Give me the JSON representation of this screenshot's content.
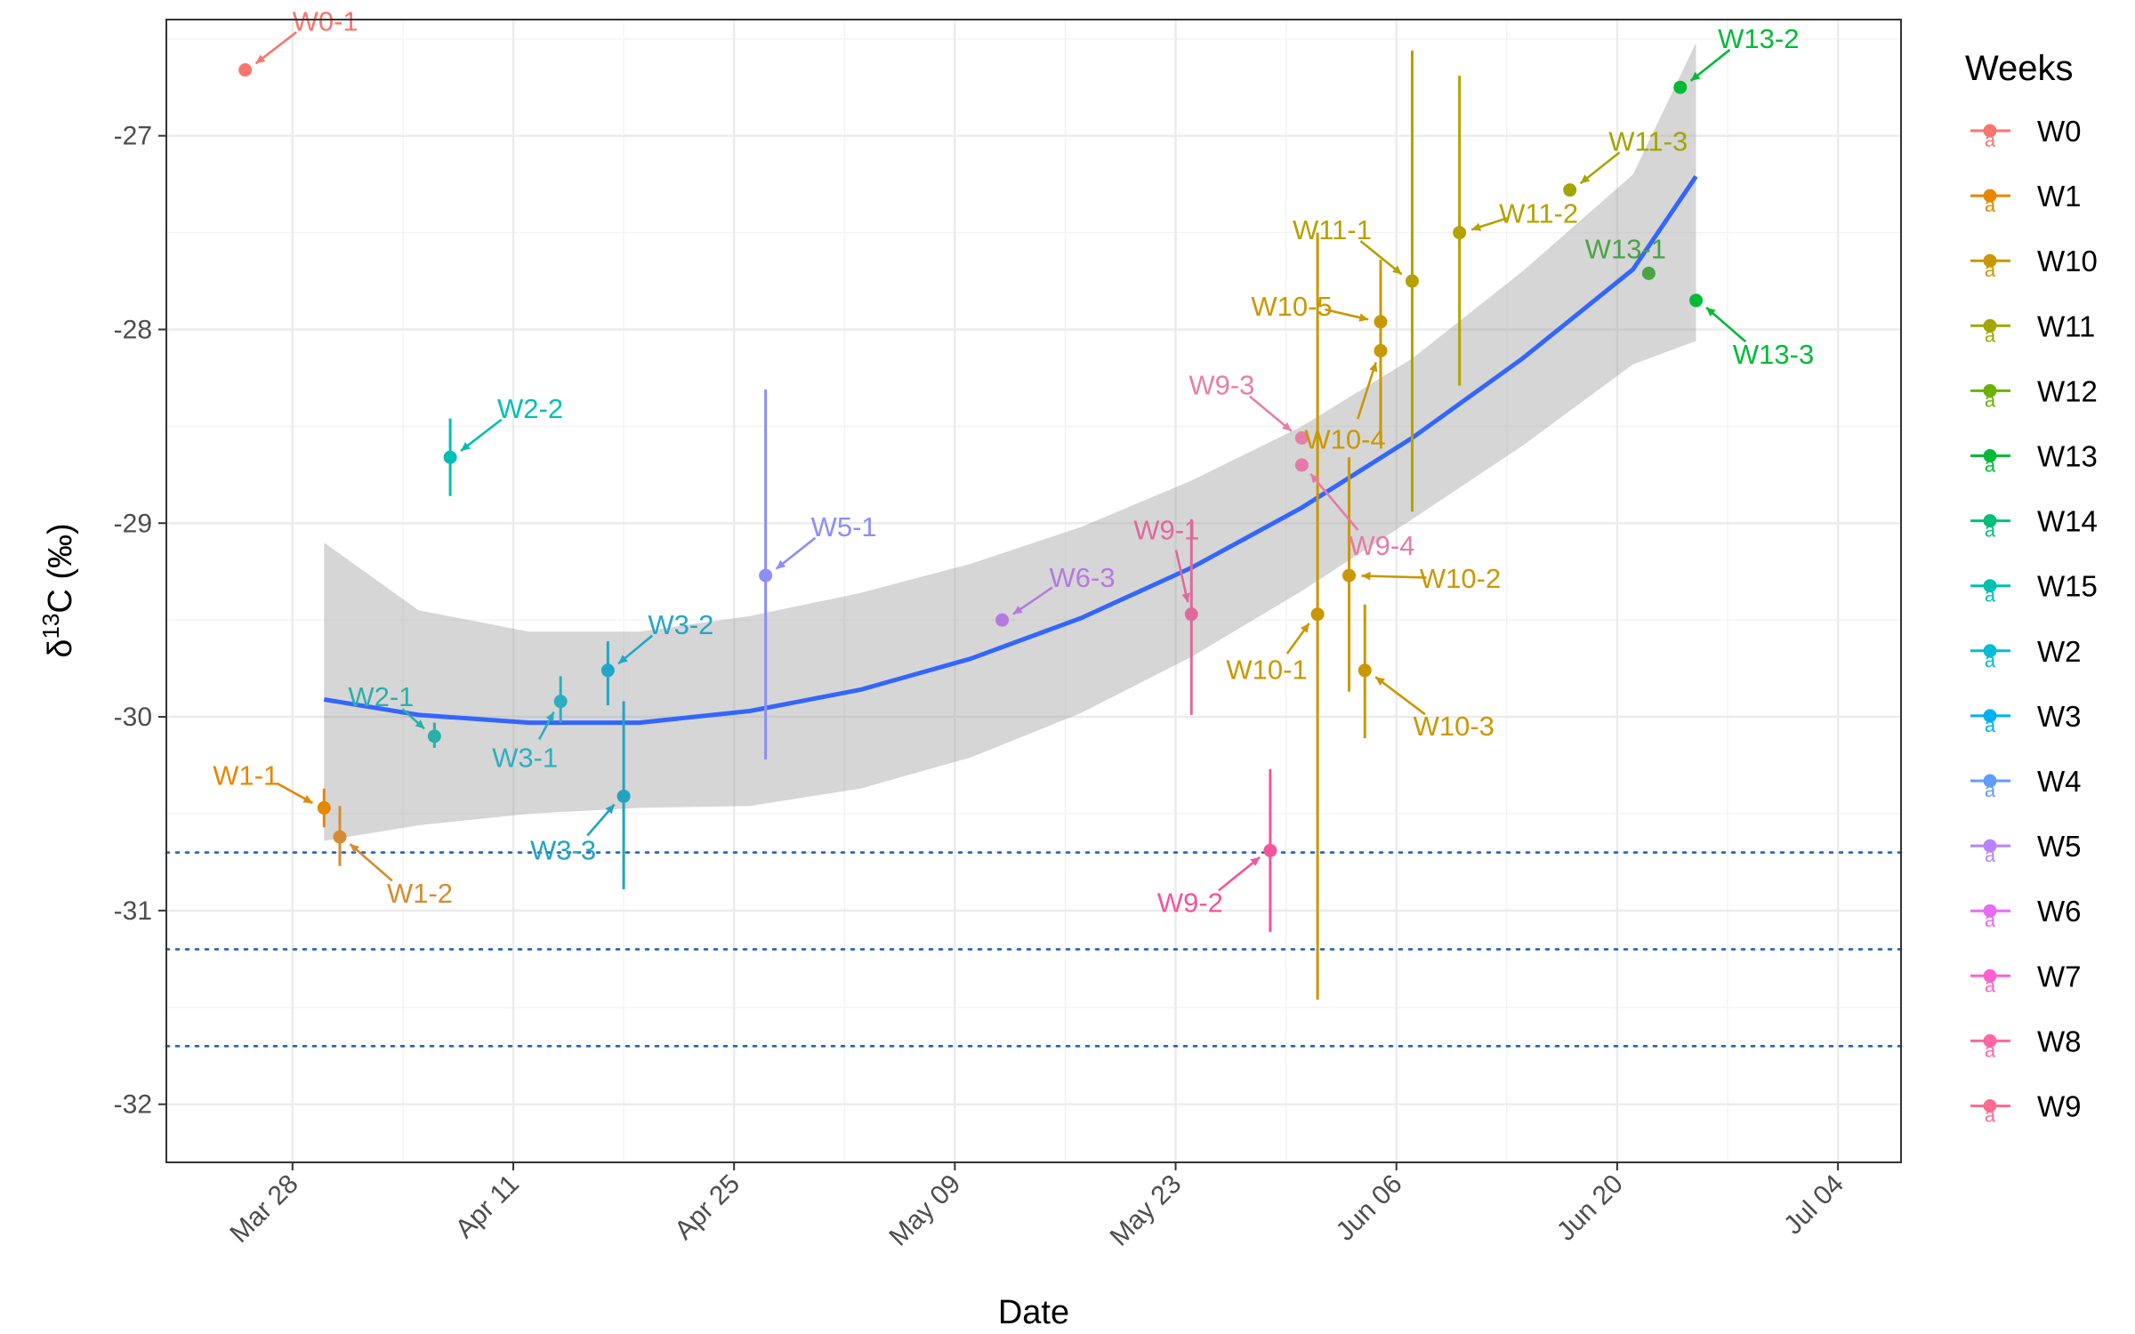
{
  "chart_data": {
    "type": "scatter",
    "title": "",
    "xlabel": "Date",
    "ylabel": "δ13C (‰)",
    "ylabel_parts": {
      "prefix": "δ",
      "sup": "13",
      "suffix": "C (‰)"
    },
    "x_is_date": true,
    "xlim": [
      "2018-03-20",
      "2018-07-08"
    ],
    "ylim": [
      -32.3,
      -26.4
    ],
    "x_ticks": [
      "2018-03-28",
      "2018-04-11",
      "2018-04-25",
      "2018-05-09",
      "2018-05-23",
      "2018-06-06",
      "2018-06-20",
      "2018-07-04"
    ],
    "x_tick_labels": [
      "Mar 28",
      "Apr 11",
      "Apr 25",
      "May 09",
      "May 23",
      "Jun 06",
      "Jun 20",
      "Jul 04"
    ],
    "y_ticks": [
      -32,
      -31,
      -30,
      -29,
      -28,
      -27
    ],
    "y_tick_labels": [
      "-32",
      "-31",
      "-30",
      "-29",
      "-28",
      "-27"
    ],
    "grid": true,
    "legend": {
      "title": "Weeks",
      "position": "right",
      "key_glyph": "a",
      "entries": [
        {
          "name": "W0",
          "color": "#F8766D"
        },
        {
          "name": "W1",
          "color": "#E58700"
        },
        {
          "name": "W10",
          "color": "#C99800"
        },
        {
          "name": "W11",
          "color": "#A3A500"
        },
        {
          "name": "W12",
          "color": "#6BB100"
        },
        {
          "name": "W13",
          "color": "#00BA38"
        },
        {
          "name": "W14",
          "color": "#00BF7D"
        },
        {
          "name": "W15",
          "color": "#00C0AF"
        },
        {
          "name": "W2",
          "color": "#00BCD8"
        },
        {
          "name": "W3",
          "color": "#00B0F6"
        },
        {
          "name": "W4",
          "color": "#619CFF"
        },
        {
          "name": "W5",
          "color": "#B983FF"
        },
        {
          "name": "W6",
          "color": "#E76BF3"
        },
        {
          "name": "W7",
          "color": "#FD61D1"
        },
        {
          "name": "W8",
          "color": "#FF67A4"
        },
        {
          "name": "W9",
          "color": "#FF6C91"
        }
      ]
    },
    "reference_lines": [
      -30.7,
      -31.2,
      -31.7
    ],
    "points": [
      {
        "date": "2018-03-25",
        "y": -26.66,
        "week": "W0",
        "label": "W0-1",
        "color": "#F8766D"
      },
      {
        "date": "2018-03-30",
        "y": -30.47,
        "ymin": -30.57,
        "ymax": -30.37,
        "week": "W1",
        "label": "W1-1",
        "color": "#E58700"
      },
      {
        "date": "2018-03-31",
        "y": -30.62,
        "ymin": -30.77,
        "ymax": -30.46,
        "week": "W1",
        "label": "W1-2",
        "color": "#D38D30"
      },
      {
        "date": "2018-04-06",
        "y": -30.1,
        "ymin": -30.16,
        "ymax": -30.03,
        "week": "W2",
        "label": "W2-1",
        "color": "#29B0A8"
      },
      {
        "date": "2018-04-07",
        "y": -28.66,
        "ymin": -28.86,
        "ymax": -28.46,
        "week": "W2",
        "label": "W2-2",
        "color": "#00BEB8"
      },
      {
        "date": "2018-04-14",
        "y": -29.92,
        "ymin": -30.03,
        "ymax": -29.79,
        "week": "W3",
        "label": "W3-1",
        "color": "#2BAFC0"
      },
      {
        "date": "2018-04-17",
        "y": -29.76,
        "ymin": -29.94,
        "ymax": -29.61,
        "week": "W3",
        "label": "W3-2",
        "color": "#1FA7C7"
      },
      {
        "date": "2018-04-18",
        "y": -30.41,
        "ymin": -30.89,
        "ymax": -29.92,
        "week": "W3",
        "label": "W3-3",
        "color": "#23A3C0"
      },
      {
        "date": "2018-04-27",
        "y": -29.27,
        "ymin": -30.22,
        "ymax": -28.31,
        "week": "W5",
        "label": "W5-1",
        "color": "#8B8FF7"
      },
      {
        "date": "2018-05-12",
        "y": -29.5,
        "week": "W6",
        "label": "W6-3",
        "color": "#B57AE0"
      },
      {
        "date": "2018-05-24",
        "y": -29.47,
        "ymin": -29.99,
        "ymax": -28.98,
        "week": "W9",
        "label": "W9-1",
        "color": "#E0699B"
      },
      {
        "date": "2018-05-29",
        "y": -30.69,
        "ymin": -31.11,
        "ymax": -30.27,
        "week": "W9",
        "label": "W9-2",
        "color": "#F2559C"
      },
      {
        "date": "2018-05-31",
        "y": -28.56,
        "week": "W9",
        "label": "W9-3",
        "color": "#E77FA6"
      },
      {
        "date": "2018-05-31",
        "y": -28.7,
        "week": "W9",
        "label": "W9-4",
        "color": "#E57BA8"
      },
      {
        "date": "2018-06-01",
        "y": -29.47,
        "ymin": -31.46,
        "ymax": -27.5,
        "week": "W10",
        "label": "W10-1",
        "color": "#C99800"
      },
      {
        "date": "2018-06-03",
        "y": -29.27,
        "ymin": -29.87,
        "ymax": -28.66,
        "week": "W10",
        "label": "W10-2",
        "color": "#C99800"
      },
      {
        "date": "2018-06-04",
        "y": -29.76,
        "ymin": -30.11,
        "ymax": -29.42,
        "week": "W10",
        "label": "W10-3",
        "color": "#C99800"
      },
      {
        "date": "2018-06-05",
        "y": -28.11,
        "ymin": -28.59,
        "ymax": -27.64,
        "week": "W10",
        "label": "W10-4",
        "color": "#C99800"
      },
      {
        "date": "2018-06-05",
        "y": -27.96,
        "week": "W10",
        "label": "W10-5",
        "color": "#C99800"
      },
      {
        "date": "2018-06-07",
        "y": -27.75,
        "ymin": -28.94,
        "ymax": -26.56,
        "week": "W11",
        "label": "W11-1",
        "color": "#B5A100"
      },
      {
        "date": "2018-06-10",
        "y": -27.5,
        "ymin": -28.29,
        "ymax": -26.69,
        "week": "W11",
        "label": "W11-2",
        "color": "#B5A100"
      },
      {
        "date": "2018-06-17",
        "y": -27.28,
        "week": "W11",
        "label": "W11-3",
        "color": "#A3A500"
      },
      {
        "date": "2018-06-22",
        "y": -27.71,
        "week": "W13",
        "label": "W13-1",
        "color": "#4AA345"
      },
      {
        "date": "2018-06-24",
        "y": -26.75,
        "week": "W13",
        "label": "W13-2",
        "color": "#00BA38"
      },
      {
        "date": "2018-06-25",
        "y": -27.85,
        "week": "W13",
        "label": "W13-3",
        "color": "#00BA38"
      }
    ],
    "trend": {
      "color": "#3366FF",
      "x": [
        "2018-03-30",
        "2018-04-05",
        "2018-04-12",
        "2018-04-19",
        "2018-04-26",
        "2018-05-03",
        "2018-05-10",
        "2018-05-17",
        "2018-05-24",
        "2018-05-31",
        "2018-06-07",
        "2018-06-14",
        "2018-06-21",
        "2018-06-25"
      ],
      "y": [
        -29.91,
        -29.99,
        -30.03,
        -30.03,
        -29.97,
        -29.86,
        -29.7,
        -29.49,
        -29.23,
        -28.92,
        -28.56,
        -28.15,
        -27.69,
        -27.21
      ],
      "band_upper": [
        -29.1,
        -29.45,
        -29.56,
        -29.56,
        -29.48,
        -29.36,
        -29.21,
        -29.02,
        -28.78,
        -28.5,
        -28.15,
        -27.7,
        -27.2,
        -26.52
      ],
      "band_lower": [
        -30.64,
        -30.56,
        -30.5,
        -30.47,
        -30.46,
        -30.37,
        -30.21,
        -29.98,
        -29.69,
        -29.35,
        -28.98,
        -28.6,
        -28.18,
        -28.06
      ]
    }
  }
}
